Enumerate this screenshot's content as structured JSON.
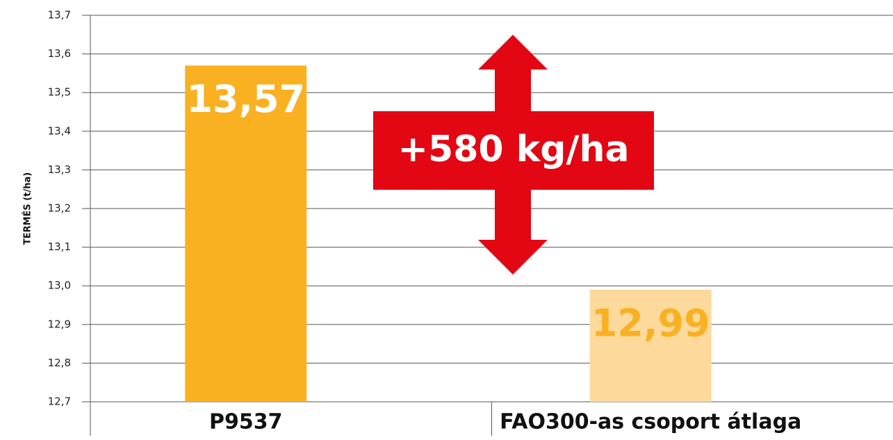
{
  "chart_data": {
    "type": "bar",
    "y_axis_label": "TERMÉS (t/ha)",
    "categories": [
      "P9537",
      "FAO300-as csoport átlaga"
    ],
    "values": [
      13.57,
      12.99
    ],
    "value_labels": [
      "13,57",
      "12,99"
    ],
    "colors": [
      "#f9b122",
      "#fdd99b"
    ],
    "value_label_colors": [
      "#ffffff",
      "#f9b122"
    ],
    "annotation": "+580 kg/ha",
    "annotation_color": "#e30613",
    "ylim": [
      12.7,
      13.7
    ],
    "yticks": [
      {
        "value": 12.7,
        "label": "12,7"
      },
      {
        "value": 12.8,
        "label": "12,8"
      },
      {
        "value": 12.9,
        "label": "12,9"
      },
      {
        "value": 13.0,
        "label": "13,0"
      },
      {
        "value": 13.1,
        "label": "13,1"
      },
      {
        "value": 13.2,
        "label": "13,2"
      },
      {
        "value": 13.3,
        "label": "13,3"
      },
      {
        "value": 13.4,
        "label": "13,4"
      },
      {
        "value": 13.5,
        "label": "13,5"
      },
      {
        "value": 13.6,
        "label": "13,6"
      },
      {
        "value": 13.7,
        "label": "13,7"
      }
    ],
    "grid": true
  }
}
